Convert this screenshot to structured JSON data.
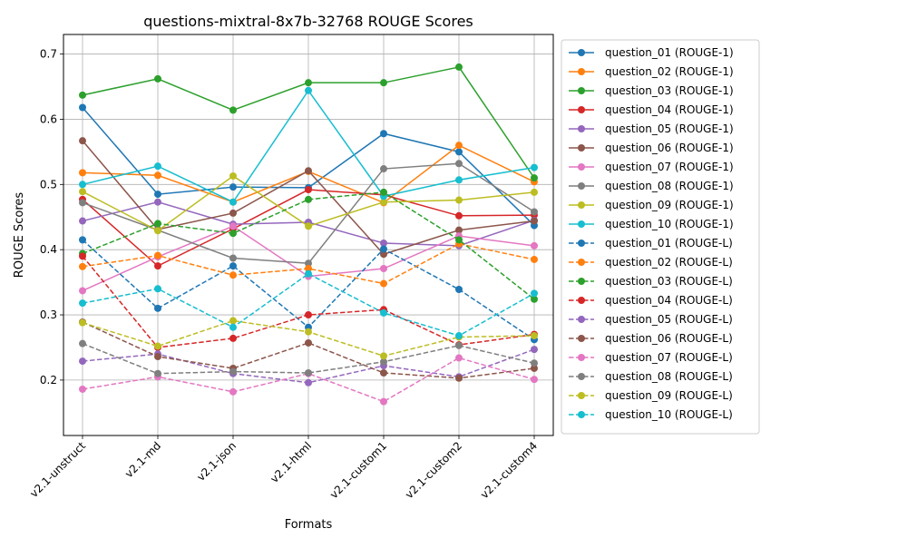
{
  "chart_data": {
    "type": "line",
    "title": "questions-mixtral-8x7b-32768 ROUGE Scores",
    "xlabel": "Formats",
    "ylabel": "ROUGE Scores",
    "categories": [
      "v2.1-unstruct",
      "v2.1-md",
      "v2.1-json",
      "v2.1-html",
      "v2.1-custom1",
      "v2.1-custom2",
      "v2.1-custom4"
    ],
    "ylim": [
      0.115,
      0.73
    ],
    "yticks": [
      0.2,
      0.3,
      0.4,
      0.5,
      0.6,
      0.7
    ],
    "ytick_labels": [
      "0.2",
      "0.3",
      "0.4",
      "0.5",
      "0.6",
      "0.7"
    ],
    "grid": true,
    "legend_position": "outside-right",
    "series": [
      {
        "name": "question_01 (ROUGE-1)",
        "color": "#1f77b4",
        "style": "solid",
        "values": [
          0.618,
          0.485,
          0.496,
          0.495,
          0.578,
          0.55,
          0.437
        ]
      },
      {
        "name": "question_02 (ROUGE-1)",
        "color": "#ff7f0e",
        "style": "solid",
        "values": [
          0.518,
          0.514,
          0.473,
          0.52,
          0.472,
          0.56,
          0.504
        ]
      },
      {
        "name": "question_03 (ROUGE-1)",
        "color": "#2ca02c",
        "style": "solid",
        "values": [
          0.637,
          0.662,
          0.614,
          0.656,
          0.656,
          0.68,
          0.51
        ]
      },
      {
        "name": "question_04 (ROUGE-1)",
        "color": "#d62728",
        "style": "solid",
        "values": [
          0.477,
          0.375,
          0.432,
          0.492,
          0.484,
          0.452,
          0.453
        ]
      },
      {
        "name": "question_05 (ROUGE-1)",
        "color": "#9467bd",
        "style": "solid",
        "values": [
          0.444,
          0.473,
          0.439,
          0.442,
          0.41,
          0.406,
          0.445
        ]
      },
      {
        "name": "question_06 (ROUGE-1)",
        "color": "#8c564b",
        "style": "solid",
        "values": [
          0.567,
          0.431,
          0.456,
          0.521,
          0.393,
          0.43,
          0.444
        ]
      },
      {
        "name": "question_07 (ROUGE-1)",
        "color": "#e377c2",
        "style": "solid",
        "values": [
          0.337,
          0.389,
          0.436,
          0.359,
          0.371,
          0.421,
          0.406
        ]
      },
      {
        "name": "question_08 (ROUGE-1)",
        "color": "#7f7f7f",
        "style": "solid",
        "values": [
          0.472,
          0.43,
          0.387,
          0.379,
          0.524,
          0.532,
          0.458
        ]
      },
      {
        "name": "question_09 (ROUGE-1)",
        "color": "#bcbd22",
        "style": "solid",
        "values": [
          0.489,
          0.429,
          0.513,
          0.436,
          0.473,
          0.476,
          0.488
        ]
      },
      {
        "name": "question_10 (ROUGE-1)",
        "color": "#17becf",
        "style": "solid",
        "values": [
          0.5,
          0.528,
          0.473,
          0.644,
          0.482,
          0.507,
          0.526
        ]
      },
      {
        "name": "question_01 (ROUGE-L)",
        "color": "#1f77b4",
        "style": "dashed",
        "values": [
          0.415,
          0.31,
          0.375,
          0.281,
          0.401,
          0.339,
          0.262
        ]
      },
      {
        "name": "question_02 (ROUGE-L)",
        "color": "#ff7f0e",
        "style": "dashed",
        "values": [
          0.374,
          0.391,
          0.361,
          0.371,
          0.348,
          0.409,
          0.385
        ]
      },
      {
        "name": "question_03 (ROUGE-L)",
        "color": "#2ca02c",
        "style": "dashed",
        "values": [
          0.394,
          0.44,
          0.425,
          0.477,
          0.488,
          0.415,
          0.324
        ]
      },
      {
        "name": "question_04 (ROUGE-L)",
        "color": "#d62728",
        "style": "dashed",
        "values": [
          0.39,
          0.25,
          0.264,
          0.3,
          0.308,
          0.254,
          0.27
        ]
      },
      {
        "name": "question_05 (ROUGE-L)",
        "color": "#9467bd",
        "style": "dashed",
        "values": [
          0.229,
          0.24,
          0.21,
          0.196,
          0.222,
          0.205,
          0.247
        ]
      },
      {
        "name": "question_06 (ROUGE-L)",
        "color": "#8c564b",
        "style": "dashed",
        "values": [
          0.289,
          0.236,
          0.218,
          0.257,
          0.211,
          0.203,
          0.218
        ]
      },
      {
        "name": "question_07 (ROUGE-L)",
        "color": "#e377c2",
        "style": "dashed",
        "values": [
          0.186,
          0.205,
          0.182,
          0.21,
          0.167,
          0.234,
          0.201
        ]
      },
      {
        "name": "question_08 (ROUGE-L)",
        "color": "#7f7f7f",
        "style": "dashed",
        "values": [
          0.256,
          0.21,
          0.213,
          0.211,
          0.228,
          0.253,
          0.226
        ]
      },
      {
        "name": "question_09 (ROUGE-L)",
        "color": "#bcbd22",
        "style": "dashed",
        "values": [
          0.288,
          0.252,
          0.291,
          0.274,
          0.237,
          0.266,
          0.268
        ]
      },
      {
        "name": "question_10 (ROUGE-L)",
        "color": "#17becf",
        "style": "dashed",
        "values": [
          0.318,
          0.34,
          0.281,
          0.363,
          0.303,
          0.268,
          0.333
        ]
      }
    ]
  }
}
